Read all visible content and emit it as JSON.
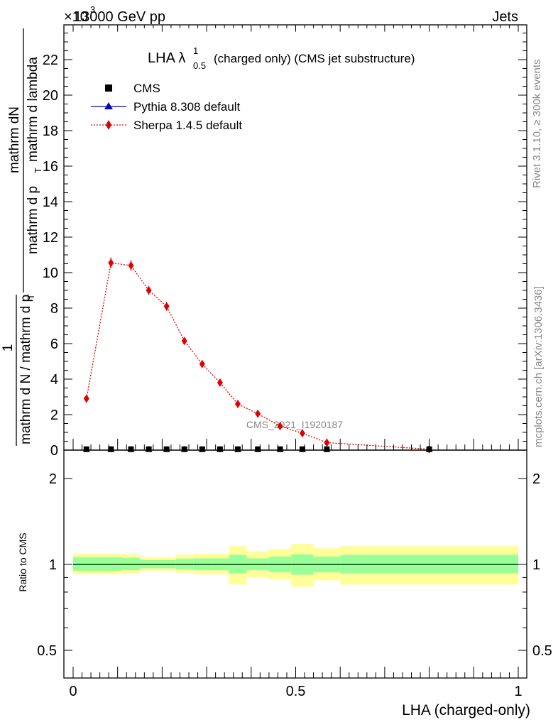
{
  "header": {
    "energy": "13000 GeV pp",
    "process": "Jets",
    "exponent": "×10",
    "exponent_power": "3"
  },
  "side_text": {
    "rivet": "Rivet 3.1.10, ≥ 300k events",
    "mcplots": "mcplots.cern.ch [arXiv:1306.3436]"
  },
  "watermark": "CMS_2021_I1920187",
  "colors": {
    "cms": "#000000",
    "pythia": "#0000cc",
    "sherpa": "#e00000",
    "band_inner": "#99ff99",
    "band_outer": "#ffff99"
  },
  "chart_data": [
    {
      "type": "scatter",
      "title_prefix": "LHA λ",
      "title_sup": "1",
      "title_sub": "0.5",
      "title_suffix": "(charged only) (CMS jet substructure)",
      "ylabel_parts": {
        "top_num": "mathrm dN",
        "top_den": "mathrm d p",
        "top_den_sub": "T",
        "top_den_rest": "mathrm d lambda",
        "one": "1",
        "bottom": "mathrm d N / mathrm d p",
        "bottom_sub": "T"
      },
      "ylim": [
        0,
        24
      ],
      "y_ticks": [
        0,
        2,
        4,
        6,
        8,
        10,
        12,
        14,
        16,
        18,
        20,
        22
      ],
      "y_tick_labels": [
        "0",
        "2",
        "4",
        "6",
        "8",
        "10",
        "12",
        "14",
        "16",
        "18",
        "20",
        "22"
      ],
      "xlim": [
        0,
        1
      ],
      "legend": [
        {
          "label": "CMS",
          "marker": "square"
        },
        {
          "label": "Pythia 8.308 default",
          "marker": "triangle"
        },
        {
          "label": "Sherpa 1.4.5 default",
          "marker": "diamond"
        }
      ],
      "series": [
        {
          "name": "CMS",
          "x": [
            0.03,
            0.085,
            0.13,
            0.17,
            0.21,
            0.25,
            0.29,
            0.33,
            0.37,
            0.415,
            0.465,
            0.515,
            0.57,
            0.8
          ],
          "y": [
            0.05,
            0.05,
            0.05,
            0.05,
            0.05,
            0.05,
            0.05,
            0.05,
            0.05,
            0.05,
            0.05,
            0.05,
            0.05,
            0.05
          ]
        },
        {
          "name": "Pythia 8.308 default",
          "x": [
            0.03,
            0.085,
            0.13,
            0.17,
            0.21,
            0.25,
            0.29,
            0.33,
            0.37,
            0.415,
            0.465,
            0.515,
            0.57,
            0.8
          ],
          "y": [
            0.03,
            0.03,
            0.03,
            0.03,
            0.03,
            0.03,
            0.03,
            0.03,
            0.03,
            0.03,
            0.03,
            0.03,
            0.03,
            0.03
          ]
        },
        {
          "name": "Sherpa 1.4.5 default",
          "x": [
            0.03,
            0.085,
            0.13,
            0.17,
            0.21,
            0.25,
            0.29,
            0.33,
            0.37,
            0.415,
            0.465,
            0.515,
            0.57,
            0.8
          ],
          "y": [
            2.9,
            10.55,
            10.4,
            9.0,
            8.1,
            6.15,
            4.85,
            3.8,
            2.6,
            2.05,
            1.35,
            0.95,
            0.42,
            0.05
          ],
          "yerr": [
            0.15,
            0.3,
            0.3,
            0.25,
            0.25,
            0.2,
            0.18,
            0.15,
            0.12,
            0.1,
            0.08,
            0.07,
            0.05,
            0.02
          ]
        }
      ]
    },
    {
      "type": "area",
      "ylabel": "Ratio to CMS",
      "xlabel": "LHA (charged-only)",
      "ylim": [
        0.4,
        2.3
      ],
      "y_scale": "log",
      "y_ticks": [
        0.5,
        1,
        2
      ],
      "y_tick_labels": [
        "0.5",
        "1",
        "2"
      ],
      "x_ticks": [
        0,
        0.5,
        1
      ],
      "x_tick_labels": [
        "0",
        "0.5",
        "1"
      ],
      "bin_edges": [
        0,
        0.055,
        0.11,
        0.15,
        0.19,
        0.23,
        0.27,
        0.31,
        0.35,
        0.39,
        0.44,
        0.49,
        0.54,
        0.6,
        1.0
      ],
      "band_inner": [
        [
          0.95,
          1.06
        ],
        [
          0.95,
          1.06
        ],
        [
          0.955,
          1.055
        ],
        [
          0.97,
          1.035
        ],
        [
          0.97,
          1.035
        ],
        [
          0.96,
          1.045
        ],
        [
          0.955,
          1.05
        ],
        [
          0.955,
          1.05
        ],
        [
          0.93,
          1.08
        ],
        [
          0.955,
          1.05
        ],
        [
          0.94,
          1.065
        ],
        [
          0.92,
          1.085
        ],
        [
          0.94,
          1.065
        ],
        [
          0.93,
          1.08
        ]
      ],
      "band_outer": [
        [
          0.925,
          1.09
        ],
        [
          0.925,
          1.09
        ],
        [
          0.93,
          1.085
        ],
        [
          0.95,
          1.06
        ],
        [
          0.95,
          1.06
        ],
        [
          0.935,
          1.08
        ],
        [
          0.925,
          1.09
        ],
        [
          0.925,
          1.09
        ],
        [
          0.85,
          1.16
        ],
        [
          0.9,
          1.11
        ],
        [
          0.885,
          1.13
        ],
        [
          0.835,
          1.18
        ],
        [
          0.88,
          1.14
        ],
        [
          0.85,
          1.16
        ]
      ],
      "reference": 1
    }
  ]
}
